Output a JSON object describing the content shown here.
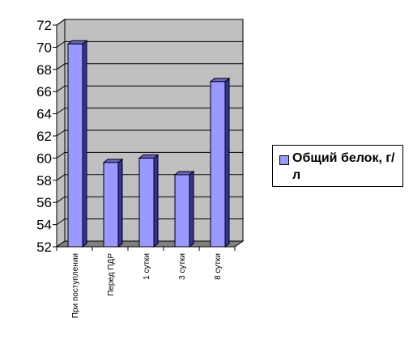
{
  "chart_data": {
    "type": "bar",
    "categories": [
      "При поступлении",
      "Перед ПДР",
      "1 сутки",
      "3 сутки",
      "8 сутки"
    ],
    "series": [
      {
        "name": "Общий белок, г/л",
        "values": [
          70.3,
          59.6,
          60.0,
          58.5,
          66.9
        ]
      }
    ],
    "ylim": [
      52,
      72
    ],
    "yticks": [
      "52",
      "54",
      "56",
      "58",
      "60",
      "62",
      "64",
      "66",
      "68",
      "70",
      "72"
    ],
    "grid": true,
    "legend_position": "right",
    "colors": {
      "bar_front": "#9999ff",
      "bar_side": "#333399",
      "bar_top": "#6666cc",
      "plot_back": "#c0c0c0",
      "plot_floor": "#808080"
    }
  }
}
